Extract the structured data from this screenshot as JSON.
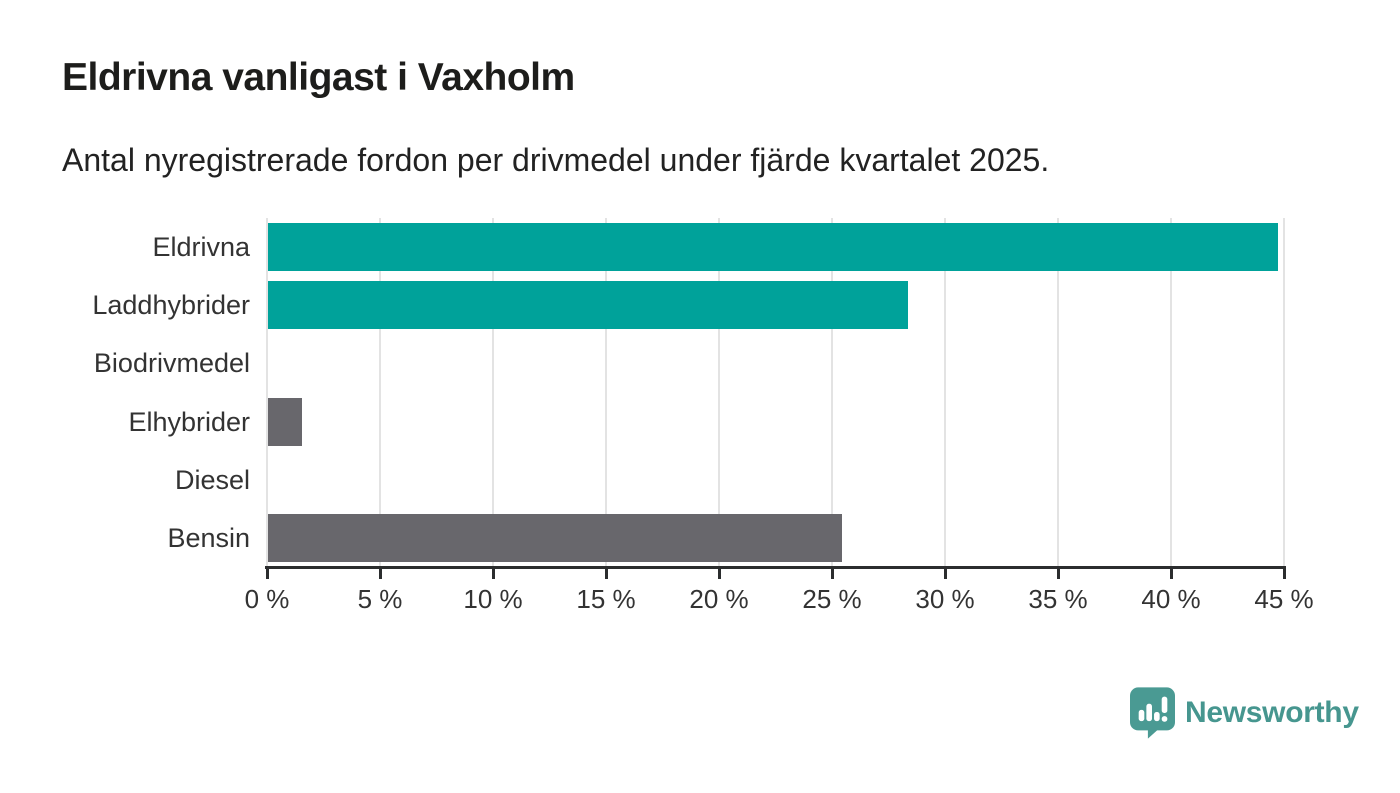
{
  "header": {
    "title": "Eldrivna vanligast i Vaxholm",
    "subtitle": "Antal nyregistrerade fordon per drivmedel under fjärde kvartalet 2025."
  },
  "chart_data": {
    "type": "bar",
    "orientation": "horizontal",
    "title": "Eldrivna vanligast i Vaxholm",
    "subtitle": "Antal nyregistrerade fordon per drivmedel under fjärde kvartalet 2025.",
    "categories": [
      "Eldrivna",
      "Laddhybrider",
      "Biodrivmedel",
      "Elhybrider",
      "Diesel",
      "Bensin"
    ],
    "values": [
      44.7,
      28.3,
      0,
      1.5,
      0,
      25.4
    ],
    "unit": "%",
    "xlim": [
      0,
      45
    ],
    "tick_values": [
      0,
      5,
      10,
      15,
      20,
      25,
      30,
      35,
      40,
      45
    ],
    "tick_labels": [
      "0 %",
      "5 %",
      "10 %",
      "15 %",
      "20 %",
      "25 %",
      "30 %",
      "35 %",
      "40 %",
      "45 %"
    ],
    "grid": true,
    "legend": "none",
    "bar_colors": [
      "#00a29a",
      "#00a29a",
      "#68676c",
      "#68676c",
      "#68676c",
      "#68676c"
    ]
  },
  "colors": {
    "teal_bar": "#00a29a",
    "gray_bar": "#68676c",
    "gridline": "#e3e3e3",
    "axis": "#2b2d2e",
    "title_text": "#1d1d1b",
    "label_text": "#333333",
    "brand_teal": "#46968f"
  },
  "branding": {
    "wordmark": "Newsworthy",
    "logo_icon": "newsworthy-pin-bar-chart-icon"
  }
}
